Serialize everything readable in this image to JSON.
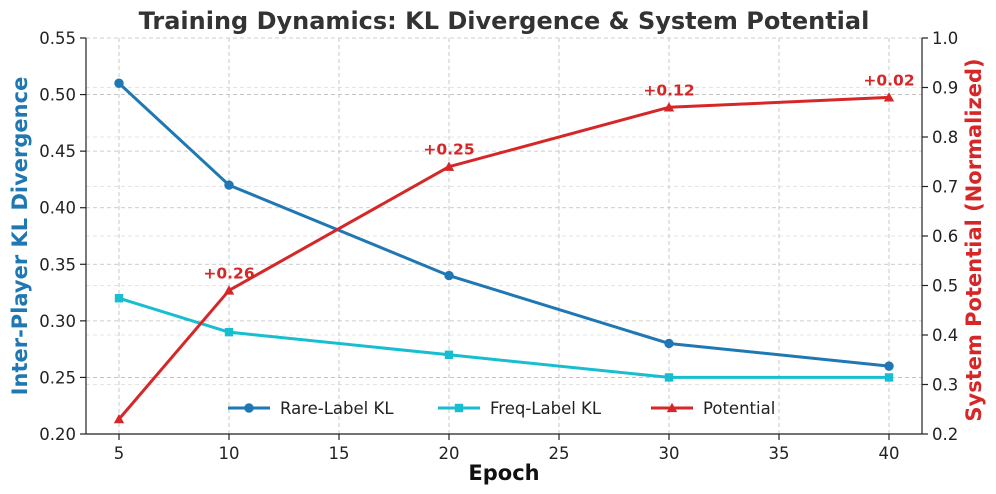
{
  "chart_data": {
    "type": "line",
    "title": "Training Dynamics: KL Divergence & System Potential",
    "xlabel": "Epoch",
    "ylabel_left": "Inter-Player KL Divergence",
    "ylabel_right": "System Potential (Normalized)",
    "x": [
      5,
      10,
      20,
      30,
      40
    ],
    "xlim": [
      3.5,
      41.5
    ],
    "ylim_left": [
      0.2,
      0.55
    ],
    "ylim_right": [
      0.2,
      1.0
    ],
    "xticks": [
      5,
      10,
      15,
      20,
      25,
      30,
      35,
      40
    ],
    "yticks_left": [
      "0.20",
      "0.25",
      "0.30",
      "0.35",
      "0.40",
      "0.45",
      "0.50",
      "0.55"
    ],
    "yticks_right": [
      "0.2",
      "0.3",
      "0.4",
      "0.5",
      "0.6",
      "0.7",
      "0.8",
      "0.9",
      "1.0"
    ],
    "grid": true,
    "legend_position": "bottom-center",
    "series": [
      {
        "name": "Rare-Label KL",
        "axis": "left",
        "marker": "circle",
        "color": "#1f77b4",
        "values": [
          0.51,
          0.42,
          0.34,
          0.28,
          0.26
        ]
      },
      {
        "name": "Freq-Label KL",
        "axis": "left",
        "marker": "square",
        "color": "#17becf",
        "values": [
          0.32,
          0.29,
          0.27,
          0.25,
          0.25
        ]
      },
      {
        "name": "Potential",
        "axis": "right",
        "marker": "triangle",
        "color": "#d62728",
        "values": [
          0.23,
          0.49,
          0.74,
          0.86,
          0.88
        ]
      }
    ],
    "annotations": [
      {
        "text": "+0.26",
        "x": 10,
        "y": 0.49
      },
      {
        "text": "+0.25",
        "x": 20,
        "y": 0.74
      },
      {
        "text": "+0.12",
        "x": 30,
        "y": 0.86
      },
      {
        "text": "+0.02",
        "x": 40,
        "y": 0.88
      }
    ],
    "colors": {
      "left_axis_label": "#1f77b4",
      "right_axis_label": "#d62728",
      "annotation": "#d62728"
    }
  }
}
